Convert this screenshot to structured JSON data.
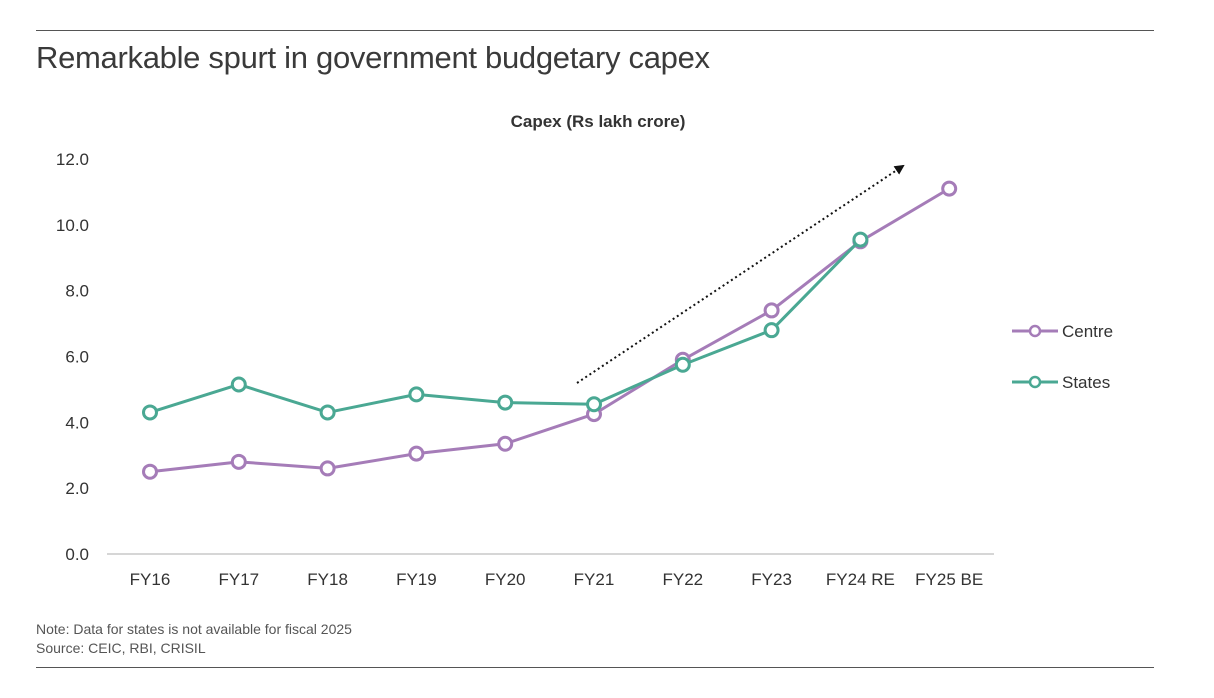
{
  "title": "Remarkable spurt in government budgetary capex",
  "notes": {
    "note": "Note: Data for states is not available for fiscal 2025",
    "source": "Source: CEIC, RBI, CRISIL"
  },
  "chart_data": {
    "type": "line",
    "title": "Capex (Rs lakh crore)",
    "categories": [
      "FY16",
      "FY17",
      "FY18",
      "FY19",
      "FY20",
      "FY21",
      "FY22",
      "FY23",
      "FY24 RE",
      "FY25 BE"
    ],
    "series": [
      {
        "name": "Centre",
        "color": "#a57cb8",
        "values": [
          2.5,
          2.8,
          2.6,
          3.05,
          3.35,
          4.25,
          5.9,
          7.4,
          9.5,
          11.1
        ]
      },
      {
        "name": "States",
        "color": "#4aa893",
        "values": [
          4.3,
          5.15,
          4.3,
          4.85,
          4.6,
          4.55,
          5.75,
          6.8,
          9.55,
          null
        ]
      }
    ],
    "ylim": [
      0,
      12
    ],
    "yticks": [
      "0.0",
      "2.0",
      "4.0",
      "6.0",
      "8.0",
      "10.0",
      "12.0"
    ],
    "legend_position": "right",
    "annotation": "dotted trend arrow rising from FY21 to FY25"
  }
}
